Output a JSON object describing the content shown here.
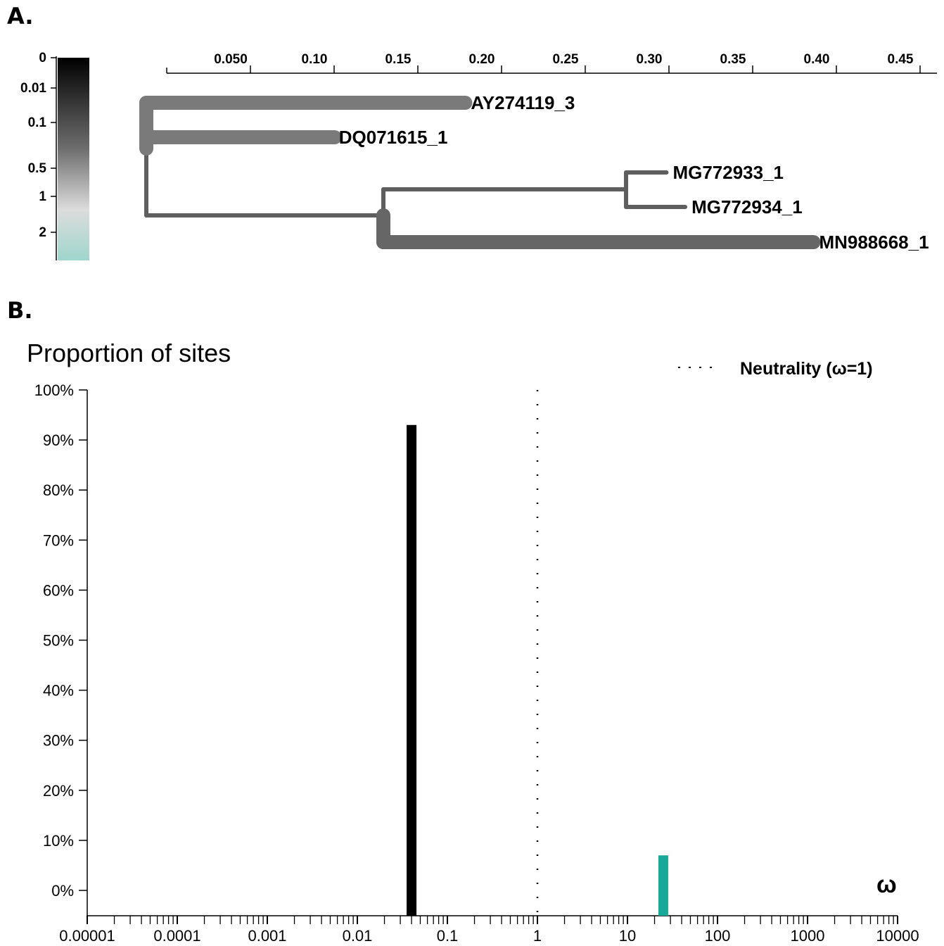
{
  "panel_a": {
    "label": "A.",
    "chart_data": {
      "type": "tree",
      "scale_ticks": [
        "0.050",
        "0.10",
        "0.15",
        "0.20",
        "0.25",
        "0.30",
        "0.35",
        "0.40",
        "0.45"
      ],
      "scale_values": [
        0.05,
        0.1,
        0.15,
        0.2,
        0.25,
        0.3,
        0.35,
        0.4,
        0.45
      ],
      "color_legend": {
        "tick_labels": [
          "0",
          "0.01",
          "0.1",
          "0.5",
          "1",
          "2"
        ],
        "gradient_colors": [
          "#000000",
          "#6e6e6e",
          "#dcdcdc",
          "#9fd6cd"
        ]
      },
      "tips": [
        {
          "name": "AY274119_3",
          "branch_end": 0.18,
          "color": "#7a7a7a",
          "thick": true
        },
        {
          "name": "DQ071615_1",
          "branch_end": 0.102,
          "color": "#7a7a7a",
          "thick": true
        },
        {
          "name": "MG772933_1",
          "branch_end": 0.288,
          "color": "#5e5e5e",
          "thick": false
        },
        {
          "name": "MG772934_1",
          "branch_end": 0.295,
          "color": "#5e5e5e",
          "thick": false
        },
        {
          "name": "MN988668_1",
          "branch_end": 0.388,
          "color": "#666666",
          "thick": true
        }
      ]
    }
  },
  "panel_b": {
    "label": "B.",
    "chart_data": {
      "type": "bar",
      "title": "Proportion of sites",
      "xlabel": "ω",
      "x_scale": "log",
      "xlim": [
        1e-05,
        10000
      ],
      "ylim": [
        0,
        100
      ],
      "y_ticks": [
        "0%",
        "10%",
        "20%",
        "30%",
        "40%",
        "50%",
        "60%",
        "70%",
        "80%",
        "90%",
        "100%"
      ],
      "x_ticks": [
        "0.00001",
        "0.0001",
        "0.001",
        "0.01",
        "0.1",
        "1",
        "10",
        "100",
        "1000",
        "10000"
      ],
      "bars": [
        {
          "omega": 0.04,
          "value": 93,
          "color": "#000000"
        },
        {
          "omega": 25,
          "value": 7,
          "color": "#18a999"
        }
      ],
      "reference_line": {
        "omega": 1,
        "style": "dotted"
      },
      "legend": {
        "label": "Neutrality (ω=1)",
        "placement": "top-right"
      }
    }
  }
}
